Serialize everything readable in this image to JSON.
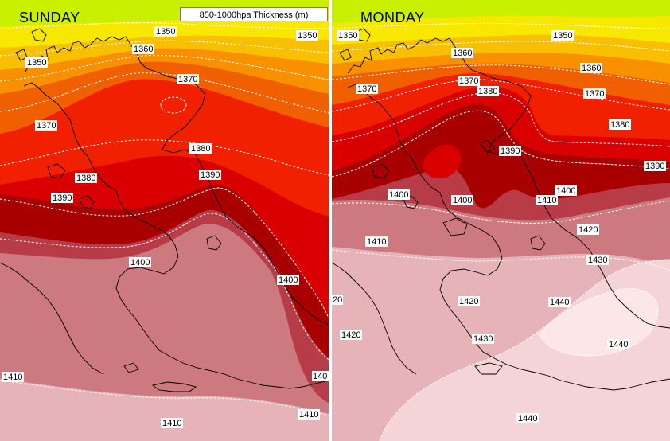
{
  "legend": {
    "title": "850-1000hpa Thickness (m)"
  },
  "panels": [
    {
      "day": "SUNDAY",
      "labels": [
        "1350",
        "1350",
        "1360",
        "1350",
        "1370",
        "1370",
        "1380",
        "1380",
        "1390",
        "1390",
        "1400",
        "1400",
        "1410",
        "1410",
        "1410",
        "140"
      ]
    },
    {
      "day": "MONDAY",
      "labels": [
        "1350",
        "1360",
        "1350",
        "1370",
        "1370",
        "1360",
        "1380",
        "1370",
        "1380",
        "1390",
        "1390",
        "1400",
        "1400",
        "1400",
        "1410",
        "1410",
        "1420",
        "1430",
        "20",
        "1420",
        "1420",
        "1430",
        "1440",
        "1440",
        "1440"
      ]
    }
  ],
  "colors": {
    "yellow_green": "#c8f000",
    "yellow": "#f8e800",
    "gold": "#f8c000",
    "orange": "#f89000",
    "orange_red": "#f06000",
    "red": "#f02000",
    "crimson": "#d80000",
    "dark_red": "#a80000",
    "rose": "#b83c48",
    "dusty_rose": "#cc7a80",
    "light_rose": "#e6b4b8",
    "pale_pink": "#f4d4d6",
    "palest_pink": "#fbe6e8"
  }
}
